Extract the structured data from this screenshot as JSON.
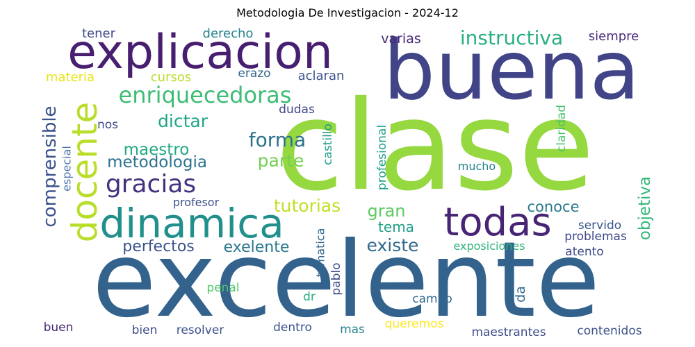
{
  "chart_data": {
    "type": "wordcloud",
    "title": "Metodologia De Investigacion - 2024-12",
    "words": [
      {
        "text": "clase",
        "color": "#95d840"
      },
      {
        "text": "buena",
        "color": "#414487"
      },
      {
        "text": "excelente",
        "color": "#33638d"
      },
      {
        "text": "explicacion",
        "color": "#481f70"
      },
      {
        "text": "dinamica",
        "color": "#21908d"
      },
      {
        "text": "todas",
        "color": "#482475"
      },
      {
        "text": "docente",
        "color": "#b8de29"
      },
      {
        "text": "enriquecedoras",
        "color": "#3dbc74"
      },
      {
        "text": "gracias",
        "color": "#46327e"
      },
      {
        "text": "instructiva",
        "color": "#29af7f"
      },
      {
        "text": "comprensible",
        "color": "#3b528b"
      },
      {
        "text": "forma",
        "color": "#2c728e"
      },
      {
        "text": "dictar",
        "color": "#21a685"
      },
      {
        "text": "maestro",
        "color": "#22a884"
      },
      {
        "text": "metodologia",
        "color": "#2c728e"
      },
      {
        "text": "tutorias",
        "color": "#c2df23"
      },
      {
        "text": "parte",
        "color": "#75d054"
      },
      {
        "text": "gran",
        "color": "#5ec962"
      },
      {
        "text": "existe",
        "color": "#31688e"
      },
      {
        "text": "objetiva",
        "color": "#35b779"
      },
      {
        "text": "perfectos",
        "color": "#3b528b"
      },
      {
        "text": "exelente",
        "color": "#2a788e"
      },
      {
        "text": "conoce",
        "color": "#2a788e"
      },
      {
        "text": "tema",
        "color": "#1fa088"
      },
      {
        "text": "varias",
        "color": "#482878"
      },
      {
        "text": "siempre",
        "color": "#472d7b"
      },
      {
        "text": "tener",
        "color": "#3e4989"
      },
      {
        "text": "derecho",
        "color": "#26828e"
      },
      {
        "text": "materia",
        "color": "#e8e419"
      },
      {
        "text": "cursos",
        "color": "#b5de2b"
      },
      {
        "text": "erazo",
        "color": "#31688e"
      },
      {
        "text": "aclaran",
        "color": "#3b528b"
      },
      {
        "text": "dudas",
        "color": "#414487"
      },
      {
        "text": "nos",
        "color": "#3e4c8a"
      },
      {
        "text": "especial",
        "color": "#4e73aa"
      },
      {
        "text": "castillo",
        "color": "#1f9e89"
      },
      {
        "text": "profesional",
        "color": "#1f9e89"
      },
      {
        "text": "claridad",
        "color": "#4ac16d"
      },
      {
        "text": "mucho",
        "color": "#25848e"
      },
      {
        "text": "profesor",
        "color": "#3b528b"
      },
      {
        "text": "servido",
        "color": "#39568c"
      },
      {
        "text": "problemas",
        "color": "#3f4889"
      },
      {
        "text": "exposiciones",
        "color": "#2fb47c"
      },
      {
        "text": "atento",
        "color": "#3e4989"
      },
      {
        "text": "tematica",
        "color": "#31688e"
      },
      {
        "text": "pablo",
        "color": "#3e4c8a"
      },
      {
        "text": "penal",
        "color": "#52c569"
      },
      {
        "text": "dr",
        "color": "#29af7f"
      },
      {
        "text": "da",
        "color": "#306a8e"
      },
      {
        "text": "campo",
        "color": "#31688e"
      },
      {
        "text": "buen",
        "color": "#482878"
      },
      {
        "text": "bien",
        "color": "#3e4989"
      },
      {
        "text": "resolver",
        "color": "#3b528b"
      },
      {
        "text": "dentro",
        "color": "#3b528b"
      },
      {
        "text": "mas",
        "color": "#26828e"
      },
      {
        "text": "queremos",
        "color": "#fde725"
      },
      {
        "text": "maestrantes",
        "color": "#3e4989"
      },
      {
        "text": "contenidos",
        "color": "#3b528b"
      }
    ]
  }
}
